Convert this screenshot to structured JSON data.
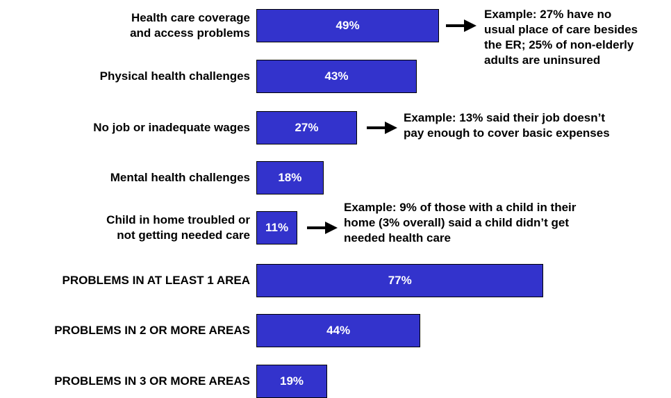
{
  "chart_data": {
    "type": "bar",
    "orientation": "horizontal",
    "categories": [
      "Health care coverage\nand access problems",
      "Physical health challenges",
      "No job or inadequate wages",
      "Mental health challenges",
      "Child in home troubled or\nnot getting needed care",
      "PROBLEMS IN AT LEAST 1 AREA",
      "PROBLEMS IN 2 OR MORE AREAS",
      "PROBLEMS IN 3 OR MORE AREAS"
    ],
    "values": [
      49,
      43,
      27,
      18,
      11,
      77,
      44,
      19
    ],
    "value_labels": [
      "49%",
      "43%",
      "27%",
      "18%",
      "11%",
      "77%",
      "44%",
      "19%"
    ],
    "bar_color": "#3333cc",
    "title": "",
    "xlabel": "",
    "ylabel": "",
    "grid": false,
    "annotations": [
      {
        "category_index": 0,
        "text": "Example: 27% have no\nusual place of care besides\nthe ER; 25% of non-elderly\nadults are uninsured"
      },
      {
        "category_index": 2,
        "text": "Example: 13% said their job doesn’t\npay enough to cover basic expenses"
      },
      {
        "category_index": 4,
        "text": "Example: 9% of those with a child in their\nhome (3% overall) said a child didn’t get\nneeded health care"
      }
    ]
  }
}
